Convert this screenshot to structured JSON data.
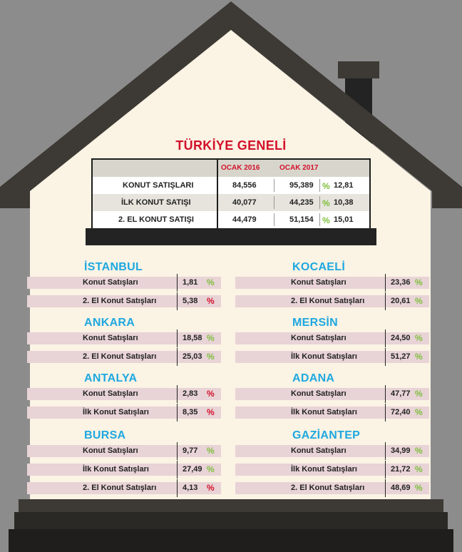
{
  "title": "TÜRKİYE GENELİ",
  "summary": {
    "headers": [
      "OCAK 2016",
      "OCAK 2017"
    ],
    "rows": [
      {
        "label": "KONUT SATIŞLARI",
        "v2016": "84,556",
        "v2017": "95,389",
        "pct_icon": "%",
        "change": "12,81"
      },
      {
        "label": "İLK KONUT SATIŞI",
        "v2016": "40,077",
        "v2017": "44,235",
        "pct_icon": "%",
        "change": "10,38"
      },
      {
        "label": "2. EL KONUT SATIŞI",
        "v2016": "44,479",
        "v2017": "51,154",
        "pct_icon": "%",
        "change": "15,01"
      }
    ]
  },
  "colors": {
    "city_title": "#1ea8e0",
    "increase": "#7dbf3b",
    "decrease": "#d3122b",
    "title": "#d3122b"
  },
  "cities": [
    {
      "name": "İSTANBUL",
      "rows": [
        {
          "label": "Konut Satışları",
          "value": "1,81",
          "pct": "%",
          "trend": "up"
        },
        {
          "label": "2. El Konut Satışları",
          "value": "5,38",
          "pct": "%",
          "trend": "down"
        }
      ]
    },
    {
      "name": "KOCAELİ",
      "rows": [
        {
          "label": "Konut Satışları",
          "value": "23,36",
          "pct": "%",
          "trend": "up"
        },
        {
          "label": "2. El Konut Satışları",
          "value": "20,61",
          "pct": "%",
          "trend": "up"
        }
      ]
    },
    {
      "name": "ANKARA",
      "rows": [
        {
          "label": "Konut Satışları",
          "value": "18,58",
          "pct": "%",
          "trend": "up"
        },
        {
          "label": "2. El Konut Satışları",
          "value": "25,03",
          "pct": "%",
          "trend": "up"
        }
      ]
    },
    {
      "name": "MERSİN",
      "rows": [
        {
          "label": "Konut Satışları",
          "value": "24,50",
          "pct": "%",
          "trend": "up"
        },
        {
          "label": "İlk Konut Satışları",
          "value": "51,27",
          "pct": "%",
          "trend": "up"
        }
      ]
    },
    {
      "name": "ANTALYA",
      "rows": [
        {
          "label": "Konut Satışları",
          "value": "2,83",
          "pct": "%",
          "trend": "down"
        },
        {
          "label": "İlk Konut Satışları",
          "value": "8,35",
          "pct": "%",
          "trend": "down"
        }
      ]
    },
    {
      "name": "ADANA",
      "rows": [
        {
          "label": "Konut Satışları",
          "value": "47,77",
          "pct": "%",
          "trend": "up"
        },
        {
          "label": "İlk Konut Satışları",
          "value": "72,40",
          "pct": "%",
          "trend": "up"
        }
      ]
    },
    {
      "name": "BURSA",
      "rows": [
        {
          "label": "Konut Satışları",
          "value": "9,77",
          "pct": "%",
          "trend": "up"
        },
        {
          "label": "İlk Konut Satışları",
          "value": "27,49",
          "pct": "%",
          "trend": "up"
        },
        {
          "label": "2. El Konut Satışları",
          "value": "4,13",
          "pct": "%",
          "trend": "down"
        }
      ]
    },
    {
      "name": "GAZİANTEP",
      "rows": [
        {
          "label": "Konut Satışları",
          "value": "34,99",
          "pct": "%",
          "trend": "up"
        },
        {
          "label": "İlk Konut Satışları",
          "value": "21,72",
          "pct": "%",
          "trend": "up"
        },
        {
          "label": "2. El Konut Satışları",
          "value": "48,69",
          "pct": "%",
          "trend": "up"
        }
      ]
    }
  ]
}
